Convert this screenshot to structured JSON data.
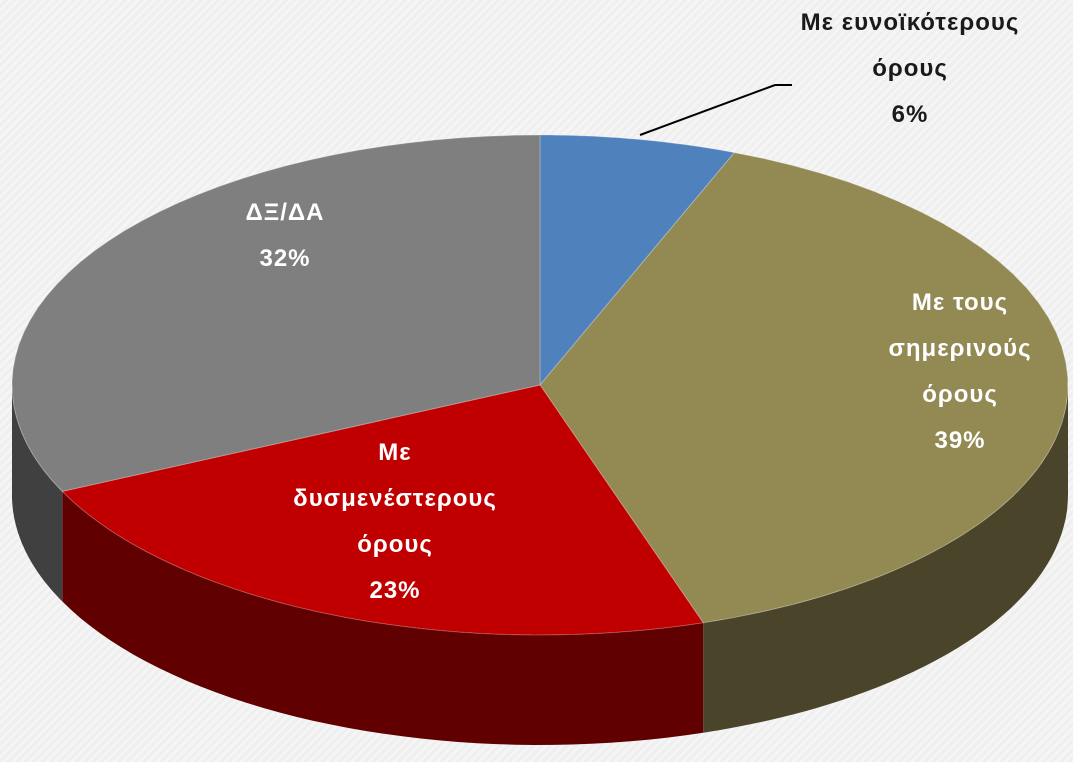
{
  "chart_data": {
    "type": "pie3d",
    "categories": [
      "Με ευνοϊκότερους όρους",
      "Με τους σημερινούς όρους",
      "Με δυσμενέστερους όρους",
      "ΔΞ/ΔΑ"
    ],
    "values": [
      6,
      39,
      23,
      32
    ],
    "value_labels": [
      "6%",
      "39%",
      "23%",
      "32%"
    ],
    "colors": [
      "#4f81bd",
      "#938953",
      "#c00000",
      "#7f7f7f"
    ]
  }
}
